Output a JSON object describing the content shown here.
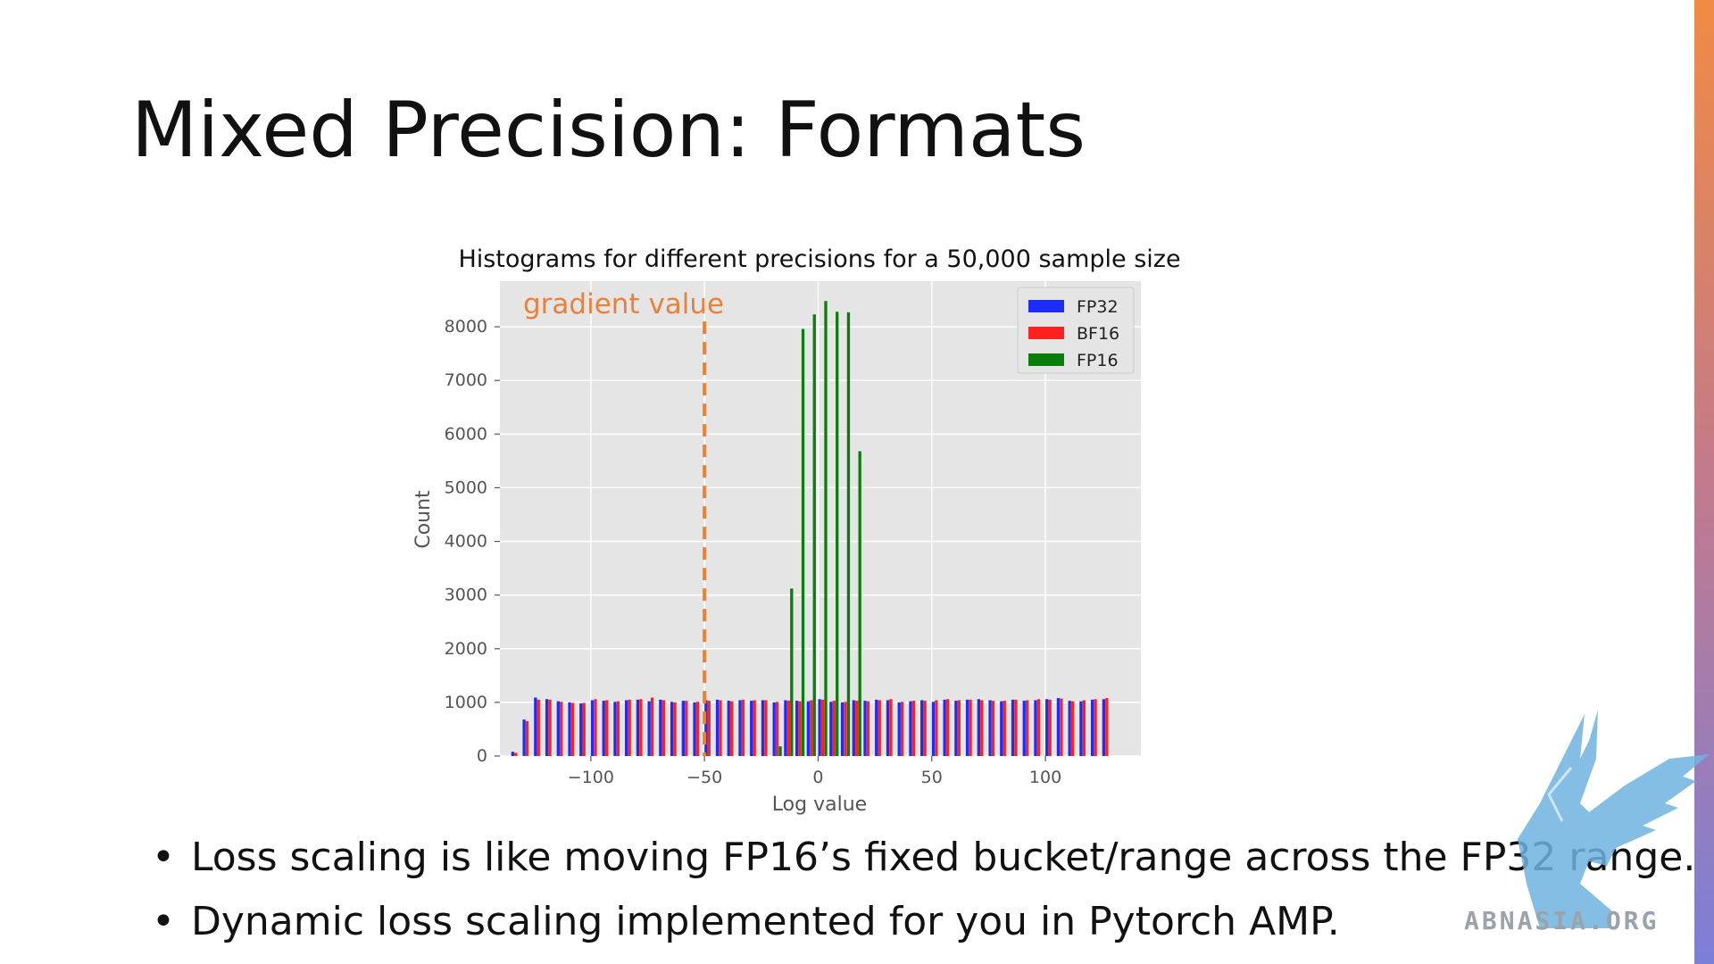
{
  "slide": {
    "title": "Mixed Precision: Formats",
    "bullets": [
      "Loss scaling is like moving FP16’s fixed bucket/range across the FP32 range.",
      "Dynamic loss scaling implemented for you in Pytorch AMP."
    ],
    "watermark": "ABNASIA.ORG"
  },
  "colors": {
    "fp32": "#1a2cff",
    "bf16": "#ff2020",
    "fp16": "#0a7d0a",
    "annotation": "#e8823a",
    "plot_bg": "#e5e5e5",
    "grid": "#ffffff"
  },
  "chart_data": {
    "type": "bar",
    "title": "Histograms for different precisions for a 50,000 sample size",
    "xlabel": "Log value",
    "ylabel": "Count",
    "xlim": [
      -140,
      142
    ],
    "ylim": [
      0,
      8850
    ],
    "grid": true,
    "xticks": [
      -100,
      -50,
      0,
      50,
      100
    ],
    "xtick_labels": [
      "−100",
      "−50",
      "0",
      "50",
      "100"
    ],
    "yticks": [
      0,
      1000,
      2000,
      3000,
      4000,
      5000,
      6000,
      7000,
      8000
    ],
    "ytick_labels": [
      "0",
      "1000",
      "2000",
      "3000",
      "4000",
      "5000",
      "6000",
      "7000",
      "8000"
    ],
    "legend_position": "top-right",
    "series": [
      {
        "name": "FP32",
        "x": [
          -133,
          -128,
          -123,
          -118,
          -113,
          -108,
          -103,
          -98,
          -93,
          -88,
          -83,
          -78,
          -73,
          -68,
          -63,
          -58,
          -53,
          -48,
          -43,
          -38,
          -33,
          -28,
          -23,
          -18,
          -13,
          -8,
          -3,
          2,
          7,
          12,
          17,
          22,
          27,
          32,
          37,
          42,
          47,
          52,
          57,
          62,
          67,
          72,
          77,
          82,
          87,
          92,
          97,
          102,
          107,
          112,
          117,
          122,
          127
        ],
        "values": [
          80,
          680,
          1090,
          1060,
          1020,
          1000,
          980,
          1040,
          1030,
          1010,
          1040,
          1050,
          1020,
          1050,
          1010,
          1030,
          1000,
          1040,
          1050,
          1030,
          1040,
          1030,
          1040,
          1000,
          1040,
          1030,
          1020,
          1060,
          1010,
          1000,
          1040,
          1030,
          1050,
          1040,
          1000,
          1020,
          1040,
          1010,
          1050,
          1030,
          1050,
          1060,
          1040,
          1020,
          1050,
          1030,
          1040,
          1060,
          1080,
          1030,
          1020,
          1050,
          1060
        ]
      },
      {
        "name": "BF16",
        "x": [
          -133,
          -128,
          -123,
          -118,
          -113,
          -108,
          -103,
          -98,
          -93,
          -88,
          -83,
          -78,
          -73,
          -68,
          -63,
          -58,
          -53,
          -48,
          -43,
          -38,
          -33,
          -28,
          -23,
          -18,
          -13,
          -8,
          -3,
          2,
          7,
          12,
          17,
          22,
          27,
          32,
          37,
          42,
          47,
          52,
          57,
          62,
          67,
          72,
          77,
          82,
          87,
          92,
          97,
          102,
          107,
          112,
          117,
          122,
          127
        ],
        "values": [
          60,
          650,
          1050,
          1050,
          1010,
          990,
          990,
          1060,
          1040,
          1020,
          1050,
          1060,
          1090,
          1040,
          1000,
          1030,
          1010,
          1030,
          1040,
          1020,
          1050,
          1040,
          1040,
          1010,
          1030,
          1020,
          1040,
          1050,
          1030,
          1010,
          1030,
          1020,
          1040,
          1060,
          1010,
          1030,
          1030,
          1040,
          1060,
          1040,
          1050,
          1040,
          1030,
          1030,
          1050,
          1040,
          1060,
          1050,
          1070,
          1020,
          1040,
          1060,
          1080
        ]
      },
      {
        "name": "FP16",
        "x": [
          -18,
          -13,
          -8,
          -3,
          2,
          7,
          12,
          17
        ],
        "values": [
          180,
          3120,
          7960,
          8230,
          8480,
          8280,
          8270,
          5680
        ]
      }
    ],
    "annotations": [
      {
        "text": "gradient value",
        "x": -50,
        "style": "dashed-vertical-line"
      }
    ]
  }
}
